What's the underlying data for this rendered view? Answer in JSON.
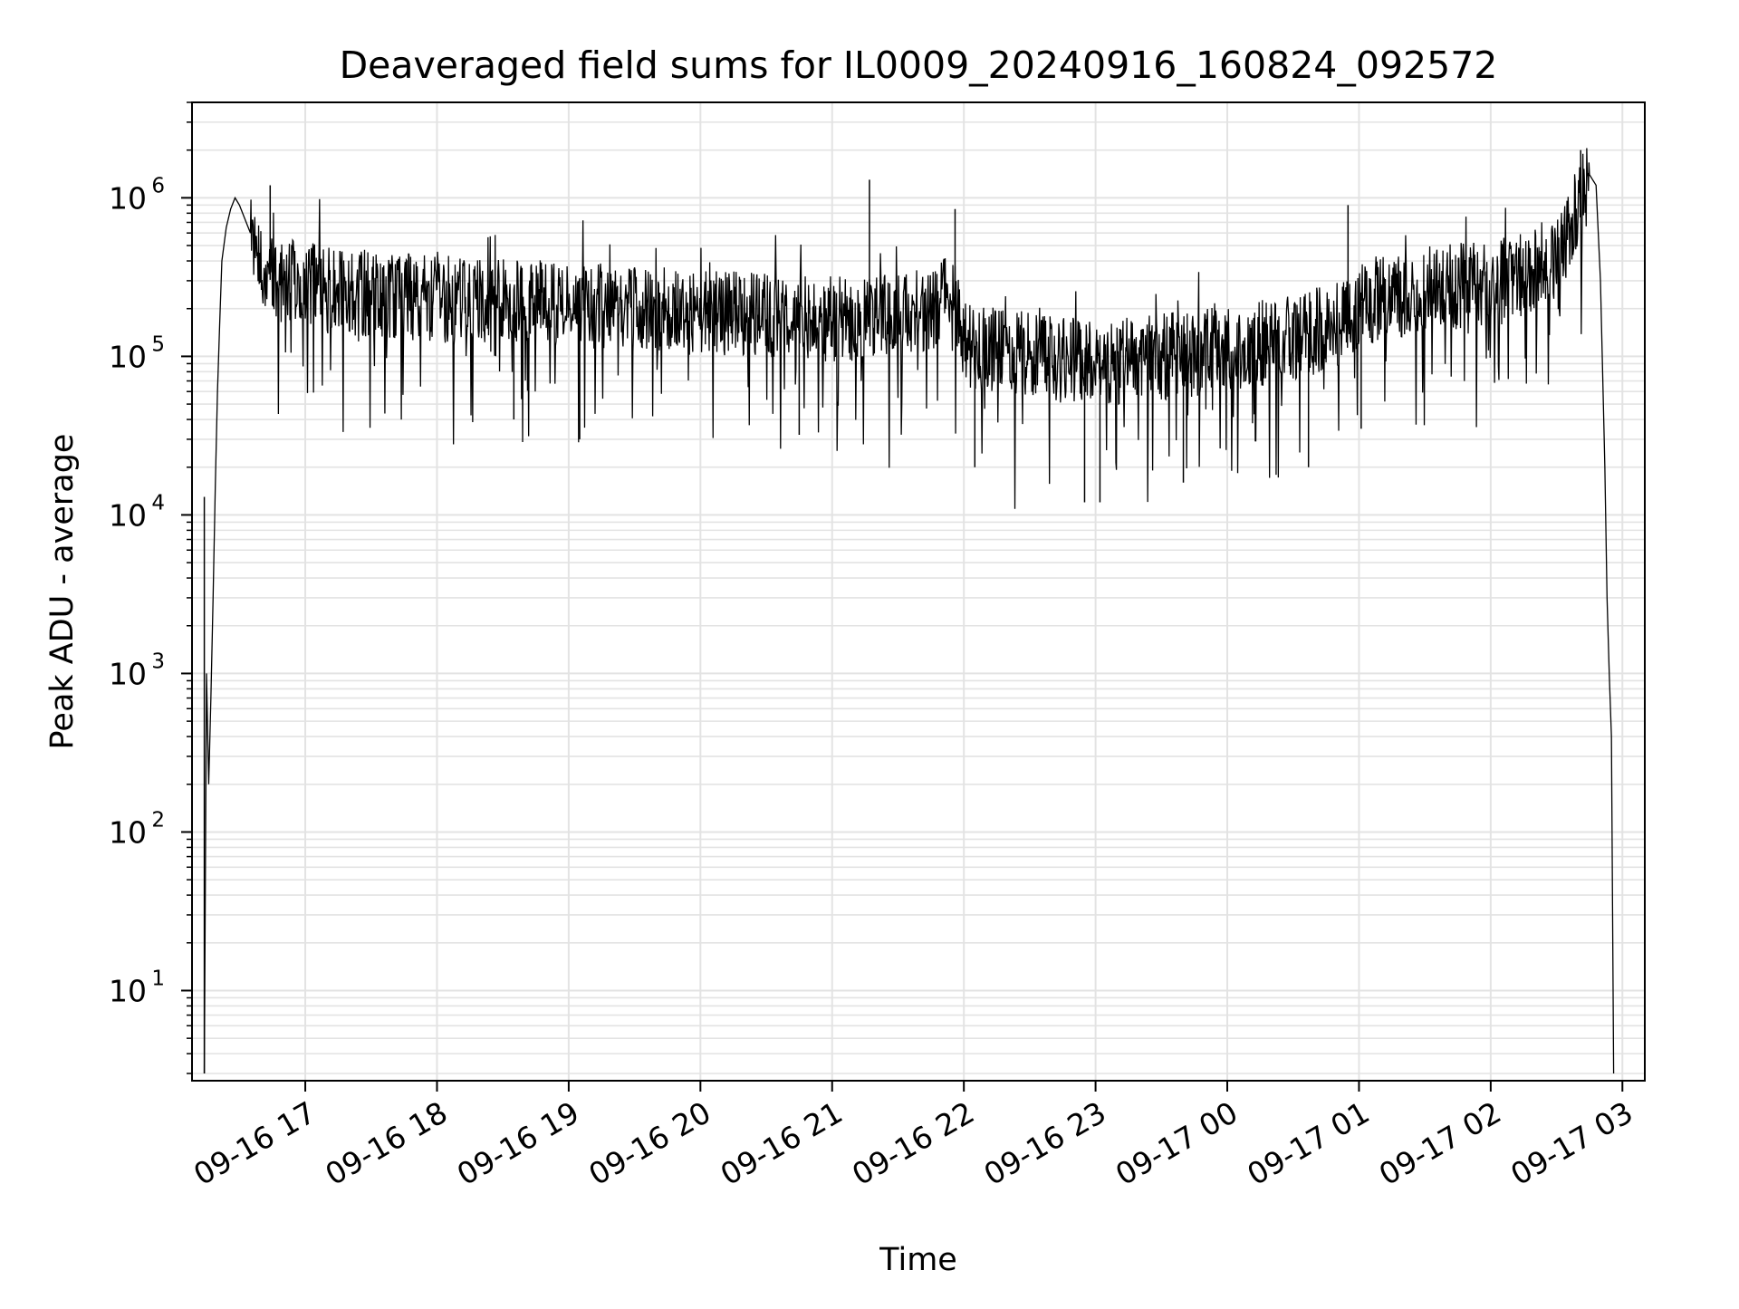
{
  "chart_data": {
    "type": "line",
    "title": "Deaveraged field sums for IL0009_20240916_160824_092572",
    "xlabel": "Time",
    "ylabel": "Peak ADU - average",
    "xlim": [
      "2024-09-16 16:08:24",
      "2024-09-17 03:10:12"
    ],
    "ylim": [
      2.7,
      4000000
    ],
    "yscale": "log",
    "grid": "both",
    "line_color": "#000000",
    "grid_color": "#e3e3e3",
    "x_ticks": [
      {
        "value": "2024-09-16 17:00",
        "label": "09-16 17"
      },
      {
        "value": "2024-09-16 18:00",
        "label": "09-16 18"
      },
      {
        "value": "2024-09-16 19:00",
        "label": "09-16 19"
      },
      {
        "value": "2024-09-16 20:00",
        "label": "09-16 20"
      },
      {
        "value": "2024-09-16 21:00",
        "label": "09-16 21"
      },
      {
        "value": "2024-09-16 22:00",
        "label": "09-16 22"
      },
      {
        "value": "2024-09-16 23:00",
        "label": "09-16 23"
      },
      {
        "value": "2024-09-17 00:00",
        "label": "09-17 00"
      },
      {
        "value": "2024-09-17 01:00",
        "label": "09-17 01"
      },
      {
        "value": "2024-09-17 02:00",
        "label": "09-17 02"
      },
      {
        "value": "2024-09-17 03:00",
        "label": "09-17 03"
      }
    ],
    "y_ticks": [
      {
        "value": 10,
        "base": "10",
        "exp": "1"
      },
      {
        "value": 100,
        "base": "10",
        "exp": "2"
      },
      {
        "value": 1000,
        "base": "10",
        "exp": "3"
      },
      {
        "value": 10000,
        "base": "10",
        "exp": "4"
      },
      {
        "value": 100000,
        "base": "10",
        "exp": "5"
      },
      {
        "value": 1000000,
        "base": "10",
        "exp": "6"
      }
    ],
    "series": [
      {
        "x": [
          "2024-09-16 16:14",
          "2024-09-16 16:15",
          "2024-09-16 16:16",
          "2024-09-16 16:17",
          "2024-09-16 16:18",
          "2024-09-16 16:19",
          "2024-09-16 16:20",
          "2024-09-16 16:21",
          "2024-09-16 16:22",
          "2024-09-16 16:24",
          "2024-09-16 16:26",
          "2024-09-16 16:28",
          "2024-09-16 16:30",
          "2024-09-16 16:35",
          "2024-09-16 16:40",
          "2024-09-16 16:45",
          "2024-09-16 16:50",
          "2024-09-16 16:55",
          "2024-09-16 17:00",
          "2024-09-16 17:15",
          "2024-09-16 17:30",
          "2024-09-16 17:45",
          "2024-09-16 18:00",
          "2024-09-16 18:15",
          "2024-09-16 18:30",
          "2024-09-16 18:45",
          "2024-09-16 19:00",
          "2024-09-16 19:15",
          "2024-09-16 19:30",
          "2024-09-16 19:45",
          "2024-09-16 20:00",
          "2024-09-16 20:15",
          "2024-09-16 20:30",
          "2024-09-16 20:45",
          "2024-09-16 21:00",
          "2024-09-16 21:15",
          "2024-09-16 21:30",
          "2024-09-16 21:45",
          "2024-09-16 21:55",
          "2024-09-16 22:00",
          "2024-09-16 22:15",
          "2024-09-16 22:30",
          "2024-09-16 22:45",
          "2024-09-16 23:00",
          "2024-09-16 23:15",
          "2024-09-16 23:30",
          "2024-09-16 23:45",
          "2024-09-17 00:00",
          "2024-09-17 00:15",
          "2024-09-17 00:30",
          "2024-09-17 00:45",
          "2024-09-17 00:55",
          "2024-09-17 01:00",
          "2024-09-17 01:15",
          "2024-09-17 01:30",
          "2024-09-17 01:45",
          "2024-09-17 02:00",
          "2024-09-17 02:15",
          "2024-09-17 02:30",
          "2024-09-17 02:40",
          "2024-09-17 02:45",
          "2024-09-17 02:48",
          "2024-09-17 02:50",
          "2024-09-17 02:52",
          "2024-09-17 02:53",
          "2024-09-17 02:54",
          "2024-09-17 02:55",
          "2024-09-17 02:56"
        ],
        "values": [
          3,
          1000,
          200,
          700,
          3000,
          15000,
          60000,
          160000,
          400000,
          650000,
          850000,
          1000000,
          900000,
          600000,
          320000,
          300000,
          290000,
          300000,
          280000,
          260000,
          250000,
          240000,
          230000,
          225000,
          220000,
          215000,
          210000,
          205000,
          200000,
          195000,
          190000,
          185000,
          180000,
          175000,
          170000,
          175000,
          185000,
          200000,
          250000,
          120000,
          110000,
          100000,
          95000,
          90000,
          95000,
          100000,
          105000,
          110000,
          120000,
          130000,
          150000,
          170000,
          220000,
          240000,
          260000,
          280000,
          300000,
          320000,
          400000,
          900000,
          1400000,
          1200000,
          300000,
          20000,
          3000,
          1000,
          400,
          3
        ]
      }
    ],
    "spikes": [
      {
        "x": "2024-09-16 16:14",
        "value": 13000
      },
      {
        "x": "2024-09-16 16:44",
        "value": 1200000
      },
      {
        "x": "2024-09-16 18:35",
        "value": 40000
      },
      {
        "x": "2024-09-16 19:05",
        "value": 30000
      },
      {
        "x": "2024-09-16 20:45",
        "value": 32000
      },
      {
        "x": "2024-09-16 21:17",
        "value": 1300000
      },
      {
        "x": "2024-09-16 21:56",
        "value": 850000
      },
      {
        "x": "2024-09-16 22:05",
        "value": 20000
      },
      {
        "x": "2024-09-16 22:55",
        "value": 12000
      },
      {
        "x": "2024-09-16 23:02",
        "value": 12000
      },
      {
        "x": "2024-09-16 23:40",
        "value": 16000
      },
      {
        "x": "2024-09-17 00:37",
        "value": 20000
      },
      {
        "x": "2024-09-17 00:55",
        "value": 900000
      },
      {
        "x": "2024-09-17 01:01",
        "value": 35000
      },
      {
        "x": "2024-09-17 02:41",
        "value": 2000000
      }
    ]
  }
}
